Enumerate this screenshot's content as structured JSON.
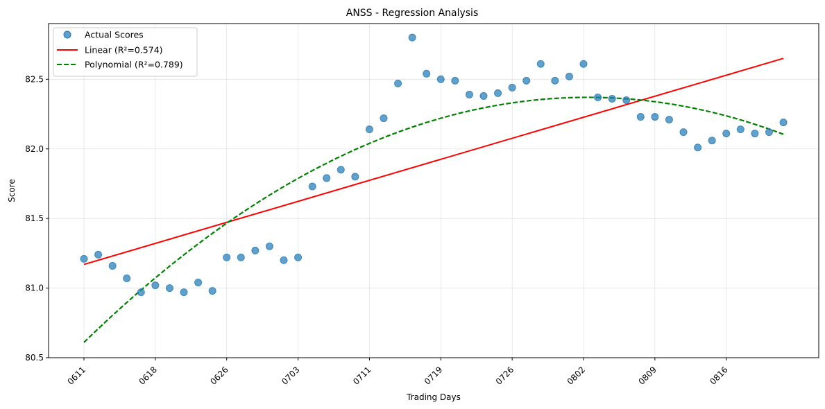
{
  "chart_data": {
    "type": "scatter",
    "title": "ANSS - Regression Analysis",
    "xlabel": "Trading Days",
    "ylabel": "Score",
    "ylim": [
      80.5,
      82.9
    ],
    "yticks": [
      80.5,
      81.0,
      81.5,
      82.0,
      82.5
    ],
    "ytick_labels": [
      "80.5",
      "81.0",
      "81.5",
      "82.0",
      "82.5"
    ],
    "xtick_labels": [
      "0611",
      "0618",
      "0626",
      "0703",
      "0711",
      "0719",
      "0726",
      "0802",
      "0809",
      "0816"
    ],
    "xtick_index": [
      0,
      5,
      10,
      15,
      20,
      25,
      30,
      35,
      40,
      45
    ],
    "grid": true,
    "legend_position": "top-left",
    "colors": {
      "scatter": "#1f77b4",
      "linear": "#ff0000",
      "polynomial": "#008000"
    },
    "series": [
      {
        "name": "Actual Scores",
        "kind": "scatter",
        "values": [
          81.21,
          81.24,
          81.16,
          81.07,
          80.97,
          81.02,
          81.0,
          80.97,
          81.04,
          80.98,
          81.22,
          81.22,
          81.27,
          81.3,
          81.2,
          81.22,
          81.73,
          81.79,
          81.85,
          81.8,
          82.14,
          82.22,
          82.47,
          82.8,
          82.54,
          82.5,
          82.49,
          82.39,
          82.38,
          82.4,
          82.44,
          82.49,
          82.61,
          82.49,
          82.52,
          82.61,
          82.37,
          82.36,
          82.35,
          82.23,
          82.23,
          82.21,
          82.12,
          82.01,
          82.06,
          82.11,
          82.14,
          82.11,
          82.12,
          82.19
        ]
      },
      {
        "name": "Linear (R²=0.574)",
        "kind": "line",
        "start": 81.17,
        "end": 82.65
      },
      {
        "name": "Polynomial (R²=0.789)",
        "kind": "poly2",
        "start": 80.61,
        "vertex_x": 35.3,
        "vertex_y": 82.37
      }
    ]
  }
}
